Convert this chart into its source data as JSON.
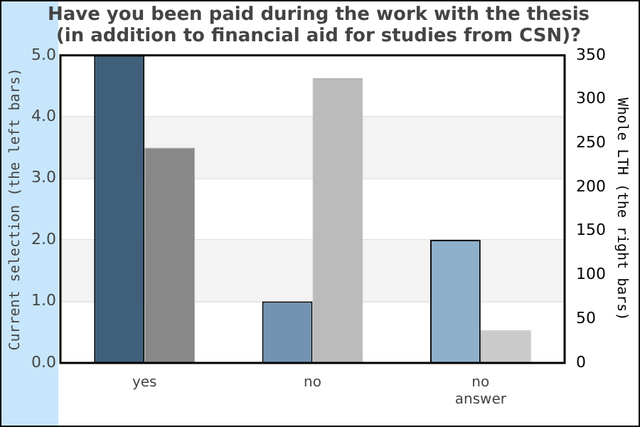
{
  "chart_data": {
    "type": "bar",
    "title": "Have you been paid during the work with the thesis\n(in addition to financial aid for studies from CSN)?",
    "ylabel": "Current selection (the left bars)",
    "y2label": "Whole LTH (the right bars)",
    "categories": [
      "yes",
      "no",
      "no answer"
    ],
    "series": [
      {
        "colors": [
          "#3f5f7b",
          "#7294b2",
          "#8fb0cb"
        ],
        "values": [
          5,
          1,
          2
        ]
      },
      {
        "colors": [
          "#888888",
          "#bbbbbb",
          "#cacaca"
        ],
        "values": [
          245,
          324,
          37
        ],
        "axis": "y2"
      }
    ],
    "ylim": [
      0,
      5
    ],
    "yticks": [
      {
        "value": 0,
        "label": "0.0"
      },
      {
        "value": 1,
        "label": "1.0"
      },
      {
        "value": 2,
        "label": "2.0"
      },
      {
        "value": 3,
        "label": "3.0"
      },
      {
        "value": 4,
        "label": "4.0"
      },
      {
        "value": 5,
        "label": "5.0"
      }
    ],
    "y2lim": [
      0,
      350
    ],
    "y2ticks": [
      0,
      50,
      100,
      150,
      200,
      250,
      300,
      350
    ],
    "grid": "y",
    "legend": false
  }
}
